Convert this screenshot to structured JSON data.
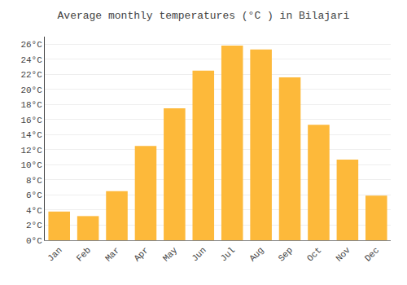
{
  "chart_data": {
    "type": "bar",
    "title": "Average monthly temperatures (°C ) in Bilajari",
    "categories": [
      "Jan",
      "Feb",
      "Mar",
      "Apr",
      "May",
      "Jun",
      "Jul",
      "Aug",
      "Sep",
      "Oct",
      "Nov",
      "Dec"
    ],
    "values": [
      3.8,
      3.2,
      6.5,
      12.5,
      17.5,
      22.5,
      25.8,
      25.3,
      21.6,
      15.3,
      10.7,
      5.9
    ],
    "color": "#FDB93A",
    "ylim": [
      0,
      27
    ],
    "yticks": [
      {
        "value": 0,
        "label": "0°C"
      },
      {
        "value": 2,
        "label": "2°C"
      },
      {
        "value": 4,
        "label": "4°C"
      },
      {
        "value": 6,
        "label": "6°C"
      },
      {
        "value": 8,
        "label": "8°C"
      },
      {
        "value": 10,
        "label": "10°C"
      },
      {
        "value": 12,
        "label": "12°C"
      },
      {
        "value": 14,
        "label": "14°C"
      },
      {
        "value": 16,
        "label": "16°C"
      },
      {
        "value": 18,
        "label": "18°C"
      },
      {
        "value": 20,
        "label": "20°C"
      },
      {
        "value": 22,
        "label": "22°C"
      },
      {
        "value": 24,
        "label": "24°C"
      },
      {
        "value": 26,
        "label": "26°C"
      }
    ],
    "grid": true
  }
}
